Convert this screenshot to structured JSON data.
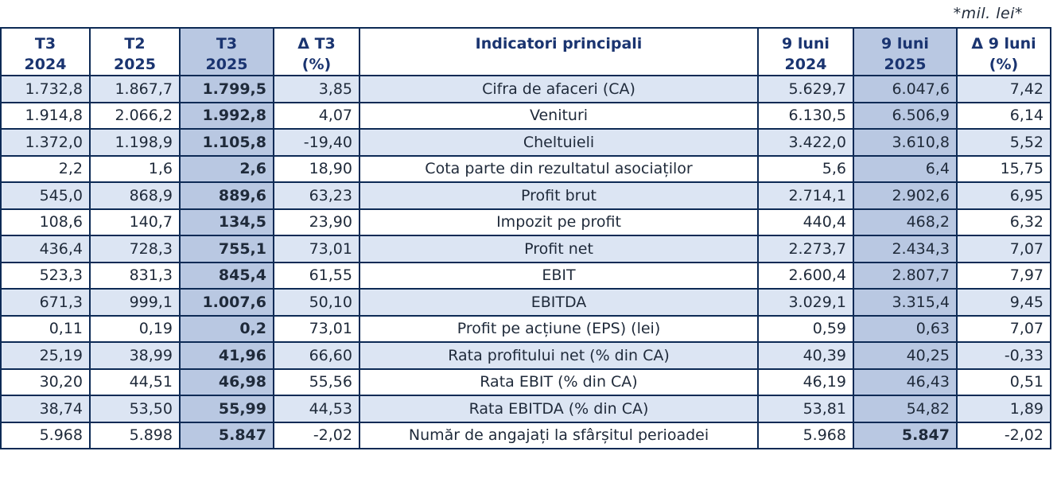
{
  "unit_note": "*mil. lei*",
  "headers": [
    {
      "line1": "T3",
      "line2": "2024"
    },
    {
      "line1": "T2",
      "line2": "2025"
    },
    {
      "line1": "T3",
      "line2": "2025"
    },
    {
      "line1": "Δ T3",
      "line2": "(%)"
    },
    {
      "line1": "Indicatori principali",
      "line2": ""
    },
    {
      "line1": "9 luni",
      "line2": "2024"
    },
    {
      "line1": "9 luni",
      "line2": "2025"
    },
    {
      "line1": "Δ 9 luni",
      "line2": "(%)"
    }
  ],
  "rows": [
    {
      "t3_2024": "1.732,8",
      "t2_2025": "1.867,7",
      "t3_2025": "1.799,5",
      "d_t3": "3,85",
      "name": "Cifra de afaceri (CA)",
      "m9_2024": "5.629,7",
      "m9_2025": "6.047,6",
      "d_9m": "7,42"
    },
    {
      "t3_2024": "1.914,8",
      "t2_2025": "2.066,2",
      "t3_2025": "1.992,8",
      "d_t3": "4,07",
      "name": "Venituri",
      "m9_2024": "6.130,5",
      "m9_2025": "6.506,9",
      "d_9m": "6,14"
    },
    {
      "t3_2024": "1.372,0",
      "t2_2025": "1.198,9",
      "t3_2025": "1.105,8",
      "d_t3": "-19,40",
      "name": "Cheltuieli",
      "m9_2024": "3.422,0",
      "m9_2025": "3.610,8",
      "d_9m": "5,52"
    },
    {
      "t3_2024": "2,2",
      "t2_2025": "1,6",
      "t3_2025": "2,6",
      "d_t3": "18,90",
      "name": "Cota parte din rezultatul asociaților",
      "m9_2024": "5,6",
      "m9_2025": "6,4",
      "d_9m": "15,75"
    },
    {
      "t3_2024": "545,0",
      "t2_2025": "868,9",
      "t3_2025": "889,6",
      "d_t3": "63,23",
      "name": "Profit brut",
      "m9_2024": "2.714,1",
      "m9_2025": "2.902,6",
      "d_9m": "6,95"
    },
    {
      "t3_2024": "108,6",
      "t2_2025": "140,7",
      "t3_2025": "134,5",
      "d_t3": "23,90",
      "name": "Impozit pe profit",
      "m9_2024": "440,4",
      "m9_2025": "468,2",
      "d_9m": "6,32"
    },
    {
      "t3_2024": "436,4",
      "t2_2025": "728,3",
      "t3_2025": "755,1",
      "d_t3": "73,01",
      "name": "Profit net",
      "m9_2024": "2.273,7",
      "m9_2025": "2.434,3",
      "d_9m": "7,07"
    },
    {
      "t3_2024": "523,3",
      "t2_2025": "831,3",
      "t3_2025": "845,4",
      "d_t3": "61,55",
      "name": "EBIT",
      "m9_2024": "2.600,4",
      "m9_2025": "2.807,7",
      "d_9m": "7,97"
    },
    {
      "t3_2024": "671,3",
      "t2_2025": "999,1",
      "t3_2025": "1.007,6",
      "d_t3": "50,10",
      "name": "EBITDA",
      "m9_2024": "3.029,1",
      "m9_2025": "3.315,4",
      "d_9m": "9,45"
    },
    {
      "t3_2024": "0,11",
      "t2_2025": "0,19",
      "t3_2025": "0,2",
      "d_t3": "73,01",
      "name": "Profit pe acțiune (EPS) (lei)",
      "m9_2024": "0,59",
      "m9_2025": "0,63",
      "d_9m": "7,07"
    },
    {
      "t3_2024": "25,19",
      "t2_2025": "38,99",
      "t3_2025": "41,96",
      "d_t3": "66,60",
      "name": "Rata profitului net (% din CA)",
      "m9_2024": "40,39",
      "m9_2025": "40,25",
      "d_9m": "-0,33"
    },
    {
      "t3_2024": "30,20",
      "t2_2025": "44,51",
      "t3_2025": "46,98",
      "d_t3": "55,56",
      "name": "Rata EBIT (% din CA)",
      "m9_2024": "46,19",
      "m9_2025": "46,43",
      "d_9m": "0,51"
    },
    {
      "t3_2024": "38,74",
      "t2_2025": "53,50",
      "t3_2025": "55,99",
      "d_t3": "44,53",
      "name": "Rata EBITDA (% din CA)",
      "m9_2024": "53,81",
      "m9_2025": "54,82",
      "d_9m": "1,89"
    },
    {
      "t3_2024": "5.968",
      "t2_2025": "5.898",
      "t3_2025": "5.847",
      "d_t3": "-2,02",
      "name": "Număr de angajați la sfârșitul perioadei",
      "m9_2024": "5.968",
      "m9_2025": "5.847",
      "d_9m": "-2,02"
    }
  ],
  "colors": {
    "header_text": "#1a3470",
    "border": "#0d2a55",
    "stripe": "#dce5f3",
    "highlight": "#b9c8e2"
  }
}
